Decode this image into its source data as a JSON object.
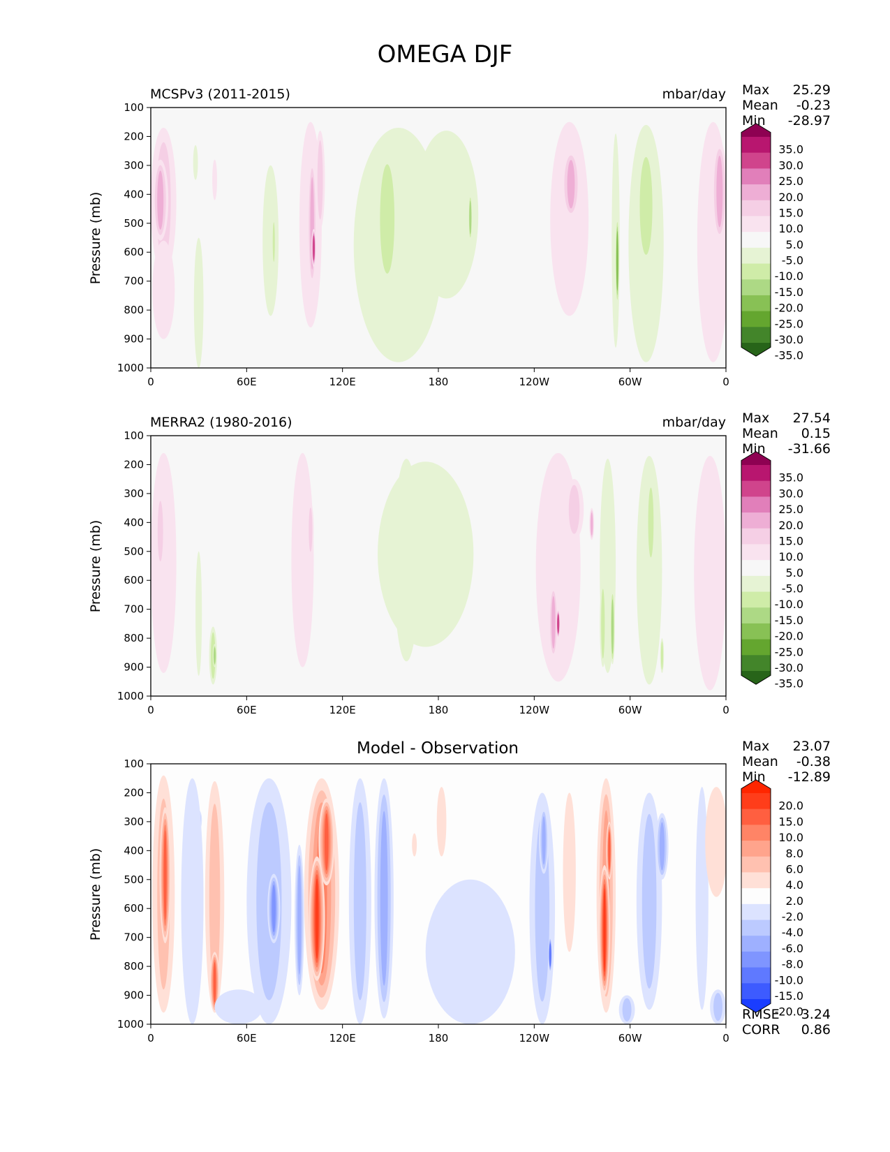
{
  "suptitle": "OMEGA DJF",
  "chart_data": [
    {
      "type": "heatmap",
      "title_left": "MCSPv3 (2011-2015)",
      "units": "mbar/day",
      "ylabel": "Pressure (mb)",
      "x_ticks": [
        "0",
        "60E",
        "120E",
        "180",
        "120W",
        "60W",
        "0"
      ],
      "y_ticks": [
        "100",
        "200",
        "300",
        "400",
        "500",
        "600",
        "700",
        "800",
        "900",
        "1000"
      ],
      "ylim": [
        1000,
        100
      ],
      "stats": {
        "Max": "25.29",
        "Mean": "-0.23",
        "Min": "-28.97"
      },
      "colorbar_labels": [
        "35.0",
        "30.0",
        "25.0",
        "20.0",
        "15.0",
        "10.0",
        "5.0",
        "-5.0",
        "-10.0",
        "-15.0",
        "-20.0",
        "-25.0",
        "-30.0",
        "-35.0"
      ],
      "colors": [
        "#8e0152",
        "#b8166f",
        "#d0448c",
        "#e17fba",
        "#eeaed5",
        "#f5cfe5",
        "#f9e3ef",
        "#f7f7f7",
        "#e6f3d4",
        "#cfeca8",
        "#add985",
        "#88c155",
        "#64a62f",
        "#43852a",
        "#276419"
      ],
      "blobs": [
        {
          "lon": 8,
          "p0": 170,
          "p1": 680,
          "w": 8,
          "v": 12
        },
        {
          "lon": 6,
          "p0": 280,
          "p1": 560,
          "w": 5,
          "v": 20
        },
        {
          "lon": 8,
          "p0": 560,
          "p1": 900,
          "w": 7,
          "v": 6
        },
        {
          "lon": 20,
          "p0": 350,
          "p1": 950,
          "w": 2,
          "v": 3
        },
        {
          "lon": 28,
          "p0": 230,
          "p1": 350,
          "w": 1.5,
          "v": -6
        },
        {
          "lon": 30,
          "p0": 550,
          "p1": 1000,
          "w": 3,
          "v": -5
        },
        {
          "lon": 40,
          "p0": 280,
          "p1": 420,
          "w": 1.5,
          "v": 8
        },
        {
          "lon": 75,
          "p0": 300,
          "p1": 820,
          "w": 5,
          "v": -6
        },
        {
          "lon": 77,
          "p0": 480,
          "p1": 650,
          "w": 1.2,
          "v": -12
        },
        {
          "lon": 100,
          "p0": 150,
          "p1": 860,
          "w": 7,
          "v": 8
        },
        {
          "lon": 101,
          "p0": 280,
          "p1": 720,
          "w": 3,
          "v": 18
        },
        {
          "lon": 102,
          "p0": 520,
          "p1": 650,
          "w": 1.5,
          "v": 26
        },
        {
          "lon": 106,
          "p0": 180,
          "p1": 520,
          "w": 3,
          "v": 14
        },
        {
          "lon": 120,
          "p0": 820,
          "p1": 1000,
          "w": 2,
          "v": 5
        },
        {
          "lon": 155,
          "p0": 170,
          "p1": 980,
          "w": 28,
          "v": -6
        },
        {
          "lon": 148,
          "p0": 250,
          "p1": 720,
          "w": 8,
          "v": -12
        },
        {
          "lon": 185,
          "p0": 180,
          "p1": 760,
          "w": 20,
          "v": -6
        },
        {
          "lon": 200,
          "p0": 400,
          "p1": 560,
          "w": 1.2,
          "v": -16
        },
        {
          "lon": 225,
          "p0": 450,
          "p1": 1000,
          "w": 6,
          "v": 4
        },
        {
          "lon": 262,
          "p0": 150,
          "p1": 820,
          "w": 12,
          "v": 10
        },
        {
          "lon": 263,
          "p0": 250,
          "p1": 480,
          "w": 6,
          "v": 18
        },
        {
          "lon": 266,
          "p0": 480,
          "p1": 950,
          "w": 6,
          "v": 5
        },
        {
          "lon": 291,
          "p0": 190,
          "p1": 930,
          "w": 2.5,
          "v": -8
        },
        {
          "lon": 292,
          "p0": 480,
          "p1": 780,
          "w": 1.2,
          "v": -22
        },
        {
          "lon": 310,
          "p0": 160,
          "p1": 980,
          "w": 11,
          "v": -6
        },
        {
          "lon": 310,
          "p0": 230,
          "p1": 650,
          "w": 7,
          "v": -12
        },
        {
          "lon": 352,
          "p0": 150,
          "p1": 980,
          "w": 10,
          "v": 8
        },
        {
          "lon": 356,
          "p0": 220,
          "p1": 560,
          "w": 5,
          "v": 16
        },
        {
          "lon": 350,
          "p0": 580,
          "p1": 980,
          "w": 8,
          "v": 4
        }
      ]
    },
    {
      "type": "heatmap",
      "title_left": "MERRA2 (1980-2016)",
      "units": "mbar/day",
      "ylabel": "Pressure (mb)",
      "x_ticks": [
        "0",
        "60E",
        "120E",
        "180",
        "120W",
        "60W",
        "0"
      ],
      "y_ticks": [
        "100",
        "200",
        "300",
        "400",
        "500",
        "600",
        "700",
        "800",
        "900",
        "1000"
      ],
      "ylim": [
        1000,
        100
      ],
      "stats": {
        "Max": "27.54",
        "Mean": "0.15",
        "Min": "-31.66"
      },
      "colorbar_labels": [
        "35.0",
        "30.0",
        "25.0",
        "20.0",
        "15.0",
        "10.0",
        "5.0",
        "-5.0",
        "-10.0",
        "-15.0",
        "-20.0",
        "-25.0",
        "-30.0",
        "-35.0"
      ],
      "colors": [
        "#8e0152",
        "#b8166f",
        "#d0448c",
        "#e17fba",
        "#eeaed5",
        "#f5cfe5",
        "#f9e3ef",
        "#f7f7f7",
        "#e6f3d4",
        "#cfeca8",
        "#add985",
        "#88c155",
        "#64a62f",
        "#43852a",
        "#276419"
      ],
      "blobs": [
        {
          "lon": 8,
          "p0": 160,
          "p1": 920,
          "w": 8,
          "v": 7
        },
        {
          "lon": 6,
          "p0": 300,
          "p1": 560,
          "w": 3,
          "v": 14
        },
        {
          "lon": 30,
          "p0": 500,
          "p1": 930,
          "w": 2,
          "v": -5
        },
        {
          "lon": 39,
          "p0": 760,
          "p1": 960,
          "w": 2.5,
          "v": -10
        },
        {
          "lon": 40,
          "p0": 820,
          "p1": 900,
          "w": 1.2,
          "v": -18
        },
        {
          "lon": 58,
          "p0": 500,
          "p1": 900,
          "w": 1.5,
          "v": 4
        },
        {
          "lon": 95,
          "p0": 160,
          "p1": 900,
          "w": 7,
          "v": 7
        },
        {
          "lon": 100,
          "p0": 330,
          "p1": 520,
          "w": 2,
          "v": 14
        },
        {
          "lon": 112,
          "p0": 560,
          "p1": 850,
          "w": 2,
          "v": 5
        },
        {
          "lon": 130,
          "p0": 820,
          "p1": 1000,
          "w": 3,
          "v": 5
        },
        {
          "lon": 172,
          "p0": 190,
          "p1": 830,
          "w": 30,
          "v": -6
        },
        {
          "lon": 160,
          "p0": 180,
          "p1": 880,
          "w": 8,
          "v": -5
        },
        {
          "lon": 255,
          "p0": 160,
          "p1": 950,
          "w": 14,
          "v": 9
        },
        {
          "lon": 265,
          "p0": 250,
          "p1": 460,
          "w": 6,
          "v": 14
        },
        {
          "lon": 252,
          "p0": 620,
          "p1": 870,
          "w": 3,
          "v": 16
        },
        {
          "lon": 255,
          "p0": 700,
          "p1": 800,
          "w": 1.2,
          "v": 28
        },
        {
          "lon": 276,
          "p0": 350,
          "p1": 460,
          "w": 1.5,
          "v": 18
        },
        {
          "lon": 286,
          "p0": 180,
          "p1": 920,
          "w": 5,
          "v": -7
        },
        {
          "lon": 283,
          "p0": 600,
          "p1": 900,
          "w": 2,
          "v": -14
        },
        {
          "lon": 289,
          "p0": 630,
          "p1": 890,
          "w": 1.5,
          "v": -18
        },
        {
          "lon": 312,
          "p0": 170,
          "p1": 960,
          "w": 8,
          "v": -6
        },
        {
          "lon": 313,
          "p0": 250,
          "p1": 550,
          "w": 3,
          "v": -11
        },
        {
          "lon": 320,
          "p0": 800,
          "p1": 920,
          "w": 1.2,
          "v": -12
        },
        {
          "lon": 350,
          "p0": 170,
          "p1": 980,
          "w": 10,
          "v": 7
        }
      ]
    },
    {
      "type": "heatmap",
      "title_center": "Model - Observation",
      "ylabel": "Pressure (mb)",
      "x_ticks": [
        "0",
        "60E",
        "120E",
        "180",
        "120W",
        "60W",
        "0"
      ],
      "y_ticks": [
        "100",
        "200",
        "300",
        "400",
        "500",
        "600",
        "700",
        "800",
        "900",
        "1000"
      ],
      "ylim": [
        1000,
        100
      ],
      "stats": {
        "Max": "23.07",
        "Mean": "-0.38",
        "Min": "-12.89"
      },
      "metrics": {
        "RMSE": "3.24",
        "CORR": "0.86"
      },
      "colorbar_labels": [
        "20.0",
        "15.0",
        "10.0",
        "8.0",
        "6.0",
        "4.0",
        "2.0",
        "-2.0",
        "-4.0",
        "-6.0",
        "-8.0",
        "-10.0",
        "-15.0",
        "-20.0"
      ],
      "colors": [
        "#ff2600",
        "#ff3d1a",
        "#ff5f40",
        "#ff8466",
        "#ffa48c",
        "#ffc1b0",
        "#ffe0d7",
        "#fdfdfd",
        "#dce3ff",
        "#bccaff",
        "#9eb0ff",
        "#7f95ff",
        "#5f79ff",
        "#3d5bff",
        "#1a3dff"
      ],
      "blobs": [
        {
          "lon": 8,
          "p0": 140,
          "p1": 960,
          "w": 7,
          "v": 6
        },
        {
          "lon": 9,
          "p0": 250,
          "p1": 720,
          "w": 3.5,
          "v": 12
        },
        {
          "lon": 30,
          "p0": 260,
          "p1": 330,
          "w": 2,
          "v": -7
        },
        {
          "lon": 26,
          "p0": 150,
          "p1": 1000,
          "w": 7,
          "v": -3
        },
        {
          "lon": 40,
          "p0": 160,
          "p1": 960,
          "w": 6,
          "v": 5
        },
        {
          "lon": 40,
          "p0": 750,
          "p1": 960,
          "w": 3,
          "v": 12
        },
        {
          "lon": 74,
          "p0": 150,
          "p1": 1000,
          "w": 14,
          "v": -4
        },
        {
          "lon": 77,
          "p0": 480,
          "p1": 720,
          "w": 4,
          "v": -9
        },
        {
          "lon": 55,
          "p0": 880,
          "p1": 1000,
          "w": 15,
          "v": -3
        },
        {
          "lon": 93,
          "p0": 380,
          "p1": 900,
          "w": 3,
          "v": -6
        },
        {
          "lon": 107,
          "p0": 150,
          "p1": 950,
          "w": 11,
          "v": 9
        },
        {
          "lon": 104,
          "p0": 420,
          "p1": 850,
          "w": 5,
          "v": 18
        },
        {
          "lon": 110,
          "p0": 220,
          "p1": 520,
          "w": 5,
          "v": 15
        },
        {
          "lon": 131,
          "p0": 150,
          "p1": 1000,
          "w": 7,
          "v": -4
        },
        {
          "lon": 146,
          "p0": 150,
          "p1": 980,
          "w": 6,
          "v": -6
        },
        {
          "lon": 165,
          "p0": 340,
          "p1": 420,
          "w": 1.5,
          "v": 3
        },
        {
          "lon": 182,
          "p0": 180,
          "p1": 420,
          "w": 3,
          "v": 3
        },
        {
          "lon": 200,
          "p0": 500,
          "p1": 1000,
          "w": 28,
          "v": -3
        },
        {
          "lon": 245,
          "p0": 200,
          "p1": 1000,
          "w": 8,
          "v": -4
        },
        {
          "lon": 246,
          "p0": 250,
          "p1": 480,
          "w": 3,
          "v": -6
        },
        {
          "lon": 250,
          "p0": 700,
          "p1": 820,
          "w": 1.2,
          "v": -12
        },
        {
          "lon": 262,
          "p0": 200,
          "p1": 750,
          "w": 4,
          "v": 4
        },
        {
          "lon": 285,
          "p0": 150,
          "p1": 960,
          "w": 6,
          "v": 8
        },
        {
          "lon": 284,
          "p0": 450,
          "p1": 900,
          "w": 3.5,
          "v": 20
        },
        {
          "lon": 287,
          "p0": 300,
          "p1": 500,
          "w": 2,
          "v": 14
        },
        {
          "lon": 298,
          "p0": 900,
          "p1": 1000,
          "w": 5,
          "v": -5
        },
        {
          "lon": 312,
          "p0": 200,
          "p1": 950,
          "w": 8,
          "v": -5
        },
        {
          "lon": 320,
          "p0": 270,
          "p1": 500,
          "w": 4,
          "v": -7
        },
        {
          "lon": 345,
          "p0": 180,
          "p1": 950,
          "w": 4,
          "v": -2.5
        },
        {
          "lon": 354,
          "p0": 180,
          "p1": 560,
          "w": 7,
          "v": 3
        },
        {
          "lon": 355,
          "p0": 880,
          "p1": 1000,
          "w": 5,
          "v": -4
        }
      ]
    }
  ]
}
